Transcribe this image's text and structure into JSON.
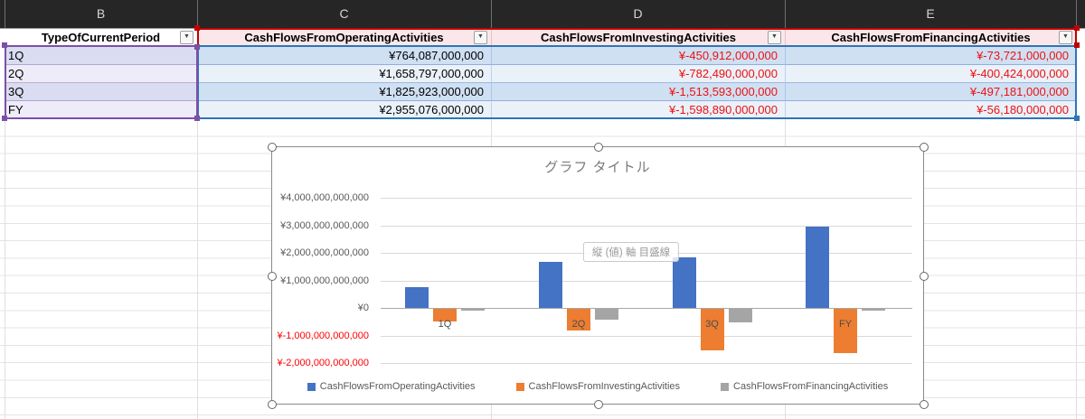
{
  "sheet": {
    "column_letters": [
      "B",
      "C",
      "D",
      "E"
    ],
    "table": {
      "category_header": "TypeOfCurrentPeriod",
      "value_headers": [
        "CashFlowsFromOperatingActivities",
        "CashFlowsFromInvestingActivities",
        "CashFlowsFromFinancingActivities"
      ],
      "filter_icon": "▼",
      "rows": [
        {
          "period": "1Q",
          "values": [
            {
              "text": "¥764,087,000,000",
              "neg": false
            },
            {
              "text": "¥-450,912,000,000",
              "neg": true
            },
            {
              "text": "¥-73,721,000,000",
              "neg": true
            }
          ]
        },
        {
          "period": "2Q",
          "values": [
            {
              "text": "¥1,658,797,000,000",
              "neg": false
            },
            {
              "text": "¥-782,490,000,000",
              "neg": true
            },
            {
              "text": "¥-400,424,000,000",
              "neg": true
            }
          ]
        },
        {
          "period": "3Q",
          "values": [
            {
              "text": "¥1,825,923,000,000",
              "neg": false
            },
            {
              "text": "¥-1,513,593,000,000",
              "neg": true
            },
            {
              "text": "¥-497,181,000,000",
              "neg": true
            }
          ]
        },
        {
          "period": "FY",
          "values": [
            {
              "text": "¥2,955,076,000,000",
              "neg": false
            },
            {
              "text": "¥-1,598,890,000,000",
              "neg": true
            },
            {
              "text": "¥-56,180,000,000",
              "neg": true
            }
          ]
        }
      ]
    },
    "colors": {
      "negative_text": "#ee1111",
      "band_blue": "#cfe0f3",
      "band_purple": "#dadcf2",
      "header_pink": "#fbe7e9",
      "highlight_purple": "#7b51a5",
      "highlight_red": "#c00000",
      "highlight_blue": "#2e75b6"
    }
  },
  "chart": {
    "title": "グラフ タイトル",
    "tooltip": "縦 (値) 軸 目盛線",
    "y_axis": [
      {
        "label": "¥4,000,000,000,000",
        "neg": false
      },
      {
        "label": "¥3,000,000,000,000",
        "neg": false
      },
      {
        "label": "¥2,000,000,000,000",
        "neg": false
      },
      {
        "label": "¥1,000,000,000,000",
        "neg": false
      },
      {
        "label": "¥0",
        "neg": false
      },
      {
        "label": "¥-1,000,000,000,000",
        "neg": true
      },
      {
        "label": "¥-2,000,000,000,000",
        "neg": true
      }
    ]
  },
  "chart_data": {
    "type": "bar",
    "title": "グラフ タイトル",
    "categories": [
      "1Q",
      "2Q",
      "3Q",
      "FY"
    ],
    "series": [
      {
        "name": "CashFlowsFromOperatingActivities",
        "color": "#4472C4",
        "values": [
          764087000000,
          1658797000000,
          1825923000000,
          2955076000000
        ]
      },
      {
        "name": "CashFlowsFromInvestingActivities",
        "color": "#ED7D31",
        "values": [
          -450912000000,
          -782490000000,
          -1513593000000,
          -1598890000000
        ]
      },
      {
        "name": "CashFlowsFromFinancingActivities",
        "color": "#A5A5A5",
        "values": [
          -73721000000,
          -400424000000,
          -497181000000,
          -56180000000
        ]
      }
    ],
    "ylim": [
      -2000000000000,
      4000000000000
    ],
    "ytick_interval": 1000000000000,
    "grid": true,
    "legend_position": "bottom",
    "axis_negative_label_color": "#ff0000"
  }
}
